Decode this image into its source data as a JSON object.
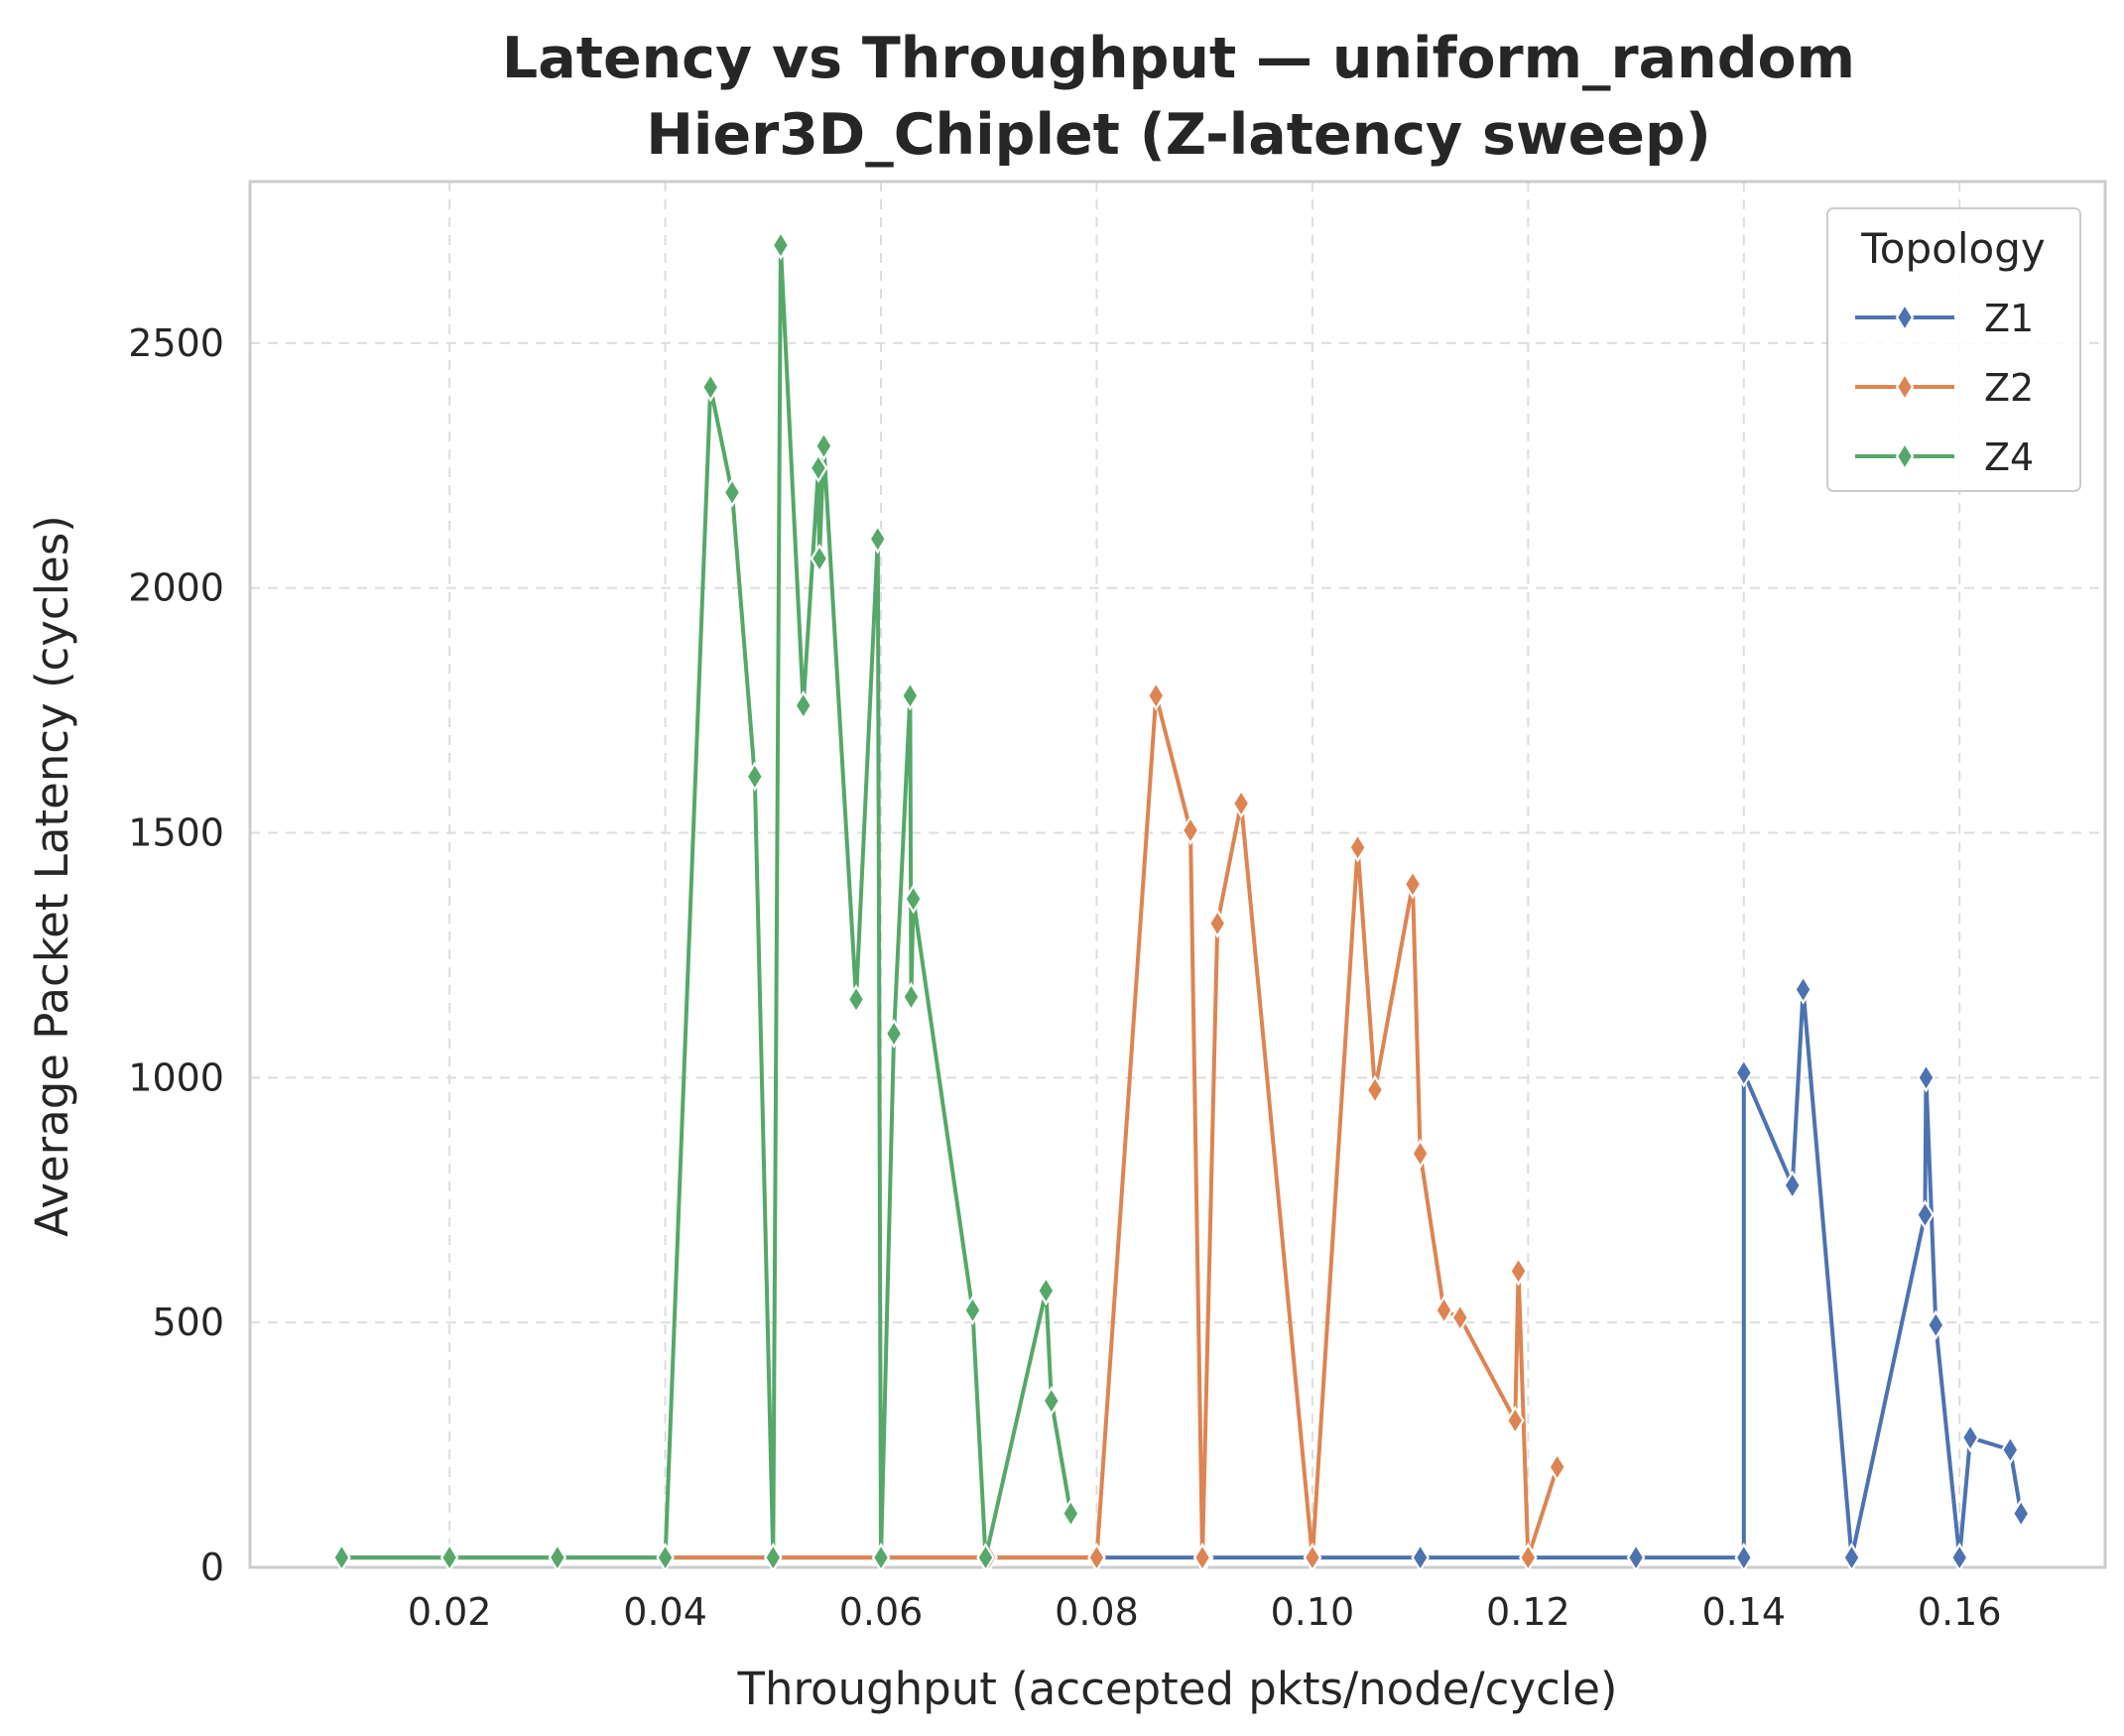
{
  "chart_data": {
    "type": "line",
    "title_line1": "Latency vs Throughput — uniform_random",
    "title_line2": "Hier3D_Chiplet (Z-latency sweep)",
    "xlabel": "Throughput (accepted pkts/node/cycle)",
    "ylabel": "Average Packet Latency (cycles)",
    "xlim": [
      0.0015,
      0.1735
    ],
    "ylim": [
      0,
      2830
    ],
    "xticks": [
      0.02,
      0.04,
      0.06,
      0.08,
      0.1,
      0.12,
      0.14,
      0.16
    ],
    "xtick_labels": [
      "0.02",
      "0.04",
      "0.06",
      "0.08",
      "0.10",
      "0.12",
      "0.14",
      "0.16"
    ],
    "yticks": [
      0,
      500,
      1000,
      1500,
      2000,
      2500
    ],
    "ytick_labels": [
      "0",
      "500",
      "1000",
      "1500",
      "2000",
      "2500"
    ],
    "grid": true,
    "legend": {
      "title": "Topology",
      "placement": "top-right"
    },
    "marker": "thin_diamond",
    "series": [
      {
        "name": "Z1",
        "color": "#4c72b0",
        "x": [
          0.01,
          0.02,
          0.03,
          0.04,
          0.05,
          0.06,
          0.07,
          0.08,
          0.09,
          0.1,
          0.11,
          0.12,
          0.13,
          0.14,
          0.14,
          0.1445,
          0.1455,
          0.15,
          0.1568,
          0.1569,
          0.1578,
          0.16,
          0.161,
          0.1647,
          0.1657
        ],
        "y": [
          20,
          20,
          20,
          20,
          20,
          20,
          20,
          20,
          20,
          20,
          20,
          20,
          20,
          20,
          1010,
          780,
          1180,
          20,
          720,
          1000,
          495,
          20,
          265,
          240,
          110
        ]
      },
      {
        "name": "Z2",
        "color": "#dd8452",
        "x": [
          0.01,
          0.02,
          0.03,
          0.04,
          0.05,
          0.06,
          0.07,
          0.08,
          0.0855,
          0.0887,
          0.0898,
          0.0912,
          0.0934,
          0.1,
          0.1042,
          0.1058,
          0.1093,
          0.11,
          0.1122,
          0.1137,
          0.1188,
          0.1191,
          0.12,
          0.1227
        ],
        "y": [
          20,
          20,
          20,
          20,
          20,
          20,
          20,
          20,
          1780,
          1505,
          20,
          1315,
          1560,
          20,
          1470,
          975,
          1395,
          845,
          525,
          510,
          300,
          605,
          20,
          205
        ]
      },
      {
        "name": "Z4",
        "color": "#55a868",
        "x": [
          0.01,
          0.02,
          0.03,
          0.04,
          0.0442,
          0.0462,
          0.0483,
          0.05,
          0.0507,
          0.0528,
          0.0542,
          0.0543,
          0.0547,
          0.0577,
          0.0597,
          0.06,
          0.0612,
          0.0627,
          0.0628,
          0.063,
          0.0685,
          0.0697,
          0.0753,
          0.0758,
          0.0776
        ],
        "y": [
          20,
          20,
          20,
          20,
          2410,
          2195,
          1615,
          20,
          2700,
          1760,
          2245,
          2060,
          2290,
          1160,
          2100,
          20,
          1090,
          1780,
          1165,
          1365,
          525,
          20,
          565,
          340,
          110
        ]
      }
    ]
  }
}
